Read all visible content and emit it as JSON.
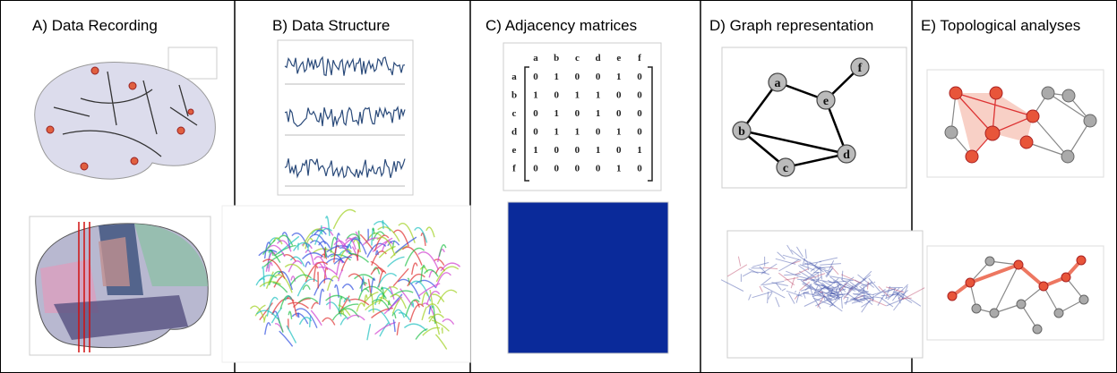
{
  "panels": [
    {
      "title": "A) Data Recording"
    },
    {
      "title": "B) Data Structure"
    },
    {
      "title": "C) Adjacency matrices"
    },
    {
      "title": "D) Graph representation"
    },
    {
      "title": "E) Topological analyses"
    }
  ],
  "matrix": {
    "columns": [
      "a",
      "b",
      "c",
      "d",
      "e",
      "f"
    ],
    "rows": [
      {
        "label": "a",
        "values": [
          0,
          1,
          0,
          0,
          1,
          0
        ]
      },
      {
        "label": "b",
        "values": [
          1,
          0,
          1,
          1,
          0,
          0
        ]
      },
      {
        "label": "c",
        "values": [
          0,
          1,
          0,
          1,
          0,
          0
        ]
      },
      {
        "label": "d",
        "values": [
          0,
          1,
          1,
          0,
          1,
          0
        ]
      },
      {
        "label": "e",
        "values": [
          1,
          0,
          0,
          1,
          0,
          1
        ]
      },
      {
        "label": "f",
        "values": [
          0,
          0,
          0,
          0,
          1,
          0
        ]
      }
    ]
  },
  "graph": {
    "nodes": [
      "a",
      "b",
      "c",
      "d",
      "e",
      "f"
    ]
  }
}
